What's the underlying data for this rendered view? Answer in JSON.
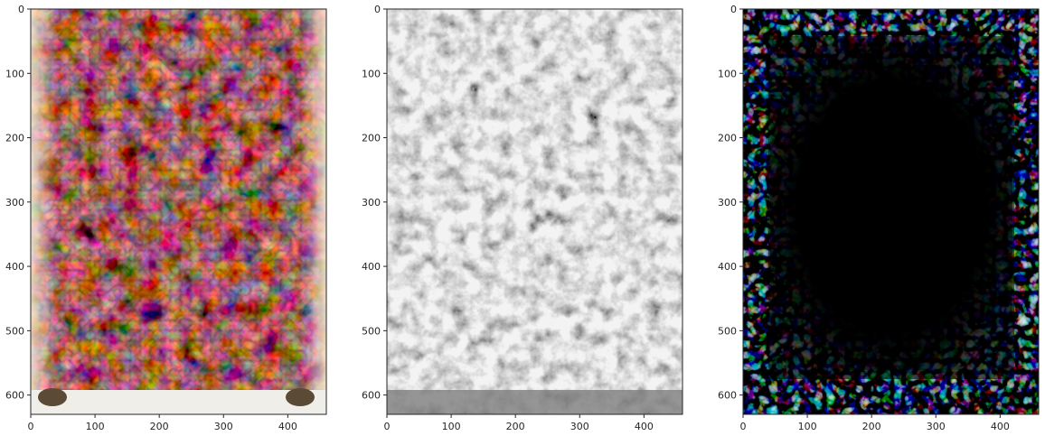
{
  "chart_data": [
    {
      "type": "image",
      "title": "",
      "xlabel": "",
      "ylabel": "",
      "xlim": [
        0,
        460
      ],
      "ylim": [
        630,
        0
      ],
      "xticks": [
        0,
        100,
        200,
        300,
        400
      ],
      "yticks": [
        0,
        100,
        200,
        300,
        400,
        500,
        600
      ],
      "content": "colorful psychedelic swirl artwork"
    },
    {
      "type": "image",
      "title": "",
      "xlabel": "",
      "ylabel": "",
      "xlim": [
        0,
        460
      ],
      "ylim": [
        630,
        0
      ],
      "xticks": [
        0,
        100,
        200,
        300,
        400
      ],
      "yticks": [
        0,
        100,
        200,
        300,
        400,
        500,
        600
      ],
      "content": "grayscale filtered version"
    },
    {
      "type": "image",
      "title": "",
      "xlabel": "",
      "ylabel": "",
      "xlim": [
        0,
        460
      ],
      "ylim": [
        630,
        0
      ],
      "xticks": [
        0,
        100,
        200,
        300,
        400
      ],
      "yticks": [
        0,
        100,
        200,
        300,
        400,
        500,
        600
      ],
      "content": "thresholded edge mask on black background"
    }
  ],
  "colors": {
    "axis": "#262626",
    "panel3_background": "#000000",
    "gray_mid": "#8a8a8a"
  }
}
